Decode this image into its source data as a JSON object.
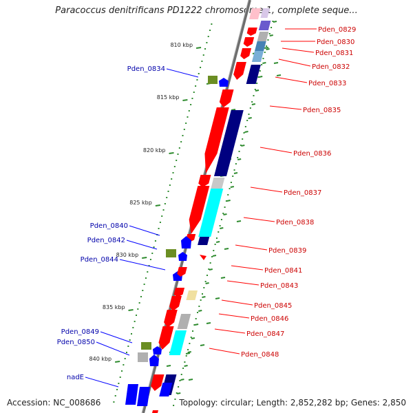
{
  "title": "Paracoccus denitrificans PD1222 chromosome 1, complete seque...",
  "footer": {
    "accession": "Accession: NC_008686",
    "topology": "Topology: circular; Length: 2,852,282 bp; Genes: 2,850"
  },
  "colors": {
    "forward": "#ff0000",
    "reverse": "#0000ff",
    "navy": "#000080",
    "cyan": "#00ffff",
    "steelblue": "#4682b4",
    "gray": "#b0b0b0",
    "olive": "#6b8e23",
    "khaki": "#f0e68c",
    "tick": "#2e8b2e",
    "backbone": "#808080"
  },
  "kbp_marks": [
    "810 kbp",
    "815 kbp",
    "820 kbp",
    "825 kbp",
    "830 kbp",
    "835 kbp",
    "840 kbp"
  ],
  "genes_right": [
    {
      "name": "Pden_0829"
    },
    {
      "name": "Pden_0830"
    },
    {
      "name": "Pden_0831"
    },
    {
      "name": "Pden_0832"
    },
    {
      "name": "Pden_0833"
    },
    {
      "name": "Pden_0835"
    },
    {
      "name": "Pden_0836"
    },
    {
      "name": "Pden_0837"
    },
    {
      "name": "Pden_0838"
    },
    {
      "name": "Pden_0839"
    },
    {
      "name": "Pden_0841"
    },
    {
      "name": "Pden_0843"
    },
    {
      "name": "Pden_0845"
    },
    {
      "name": "Pden_0846"
    },
    {
      "name": "Pden_0847"
    },
    {
      "name": "Pden_0848"
    }
  ],
  "genes_left": [
    {
      "name": "Pden_0834"
    },
    {
      "name": "Pden_0840"
    },
    {
      "name": "Pden_0842"
    },
    {
      "name": "Pden_0844"
    },
    {
      "name": "Pden_0849"
    },
    {
      "name": "Pden_0850"
    },
    {
      "name": "nadE"
    }
  ]
}
